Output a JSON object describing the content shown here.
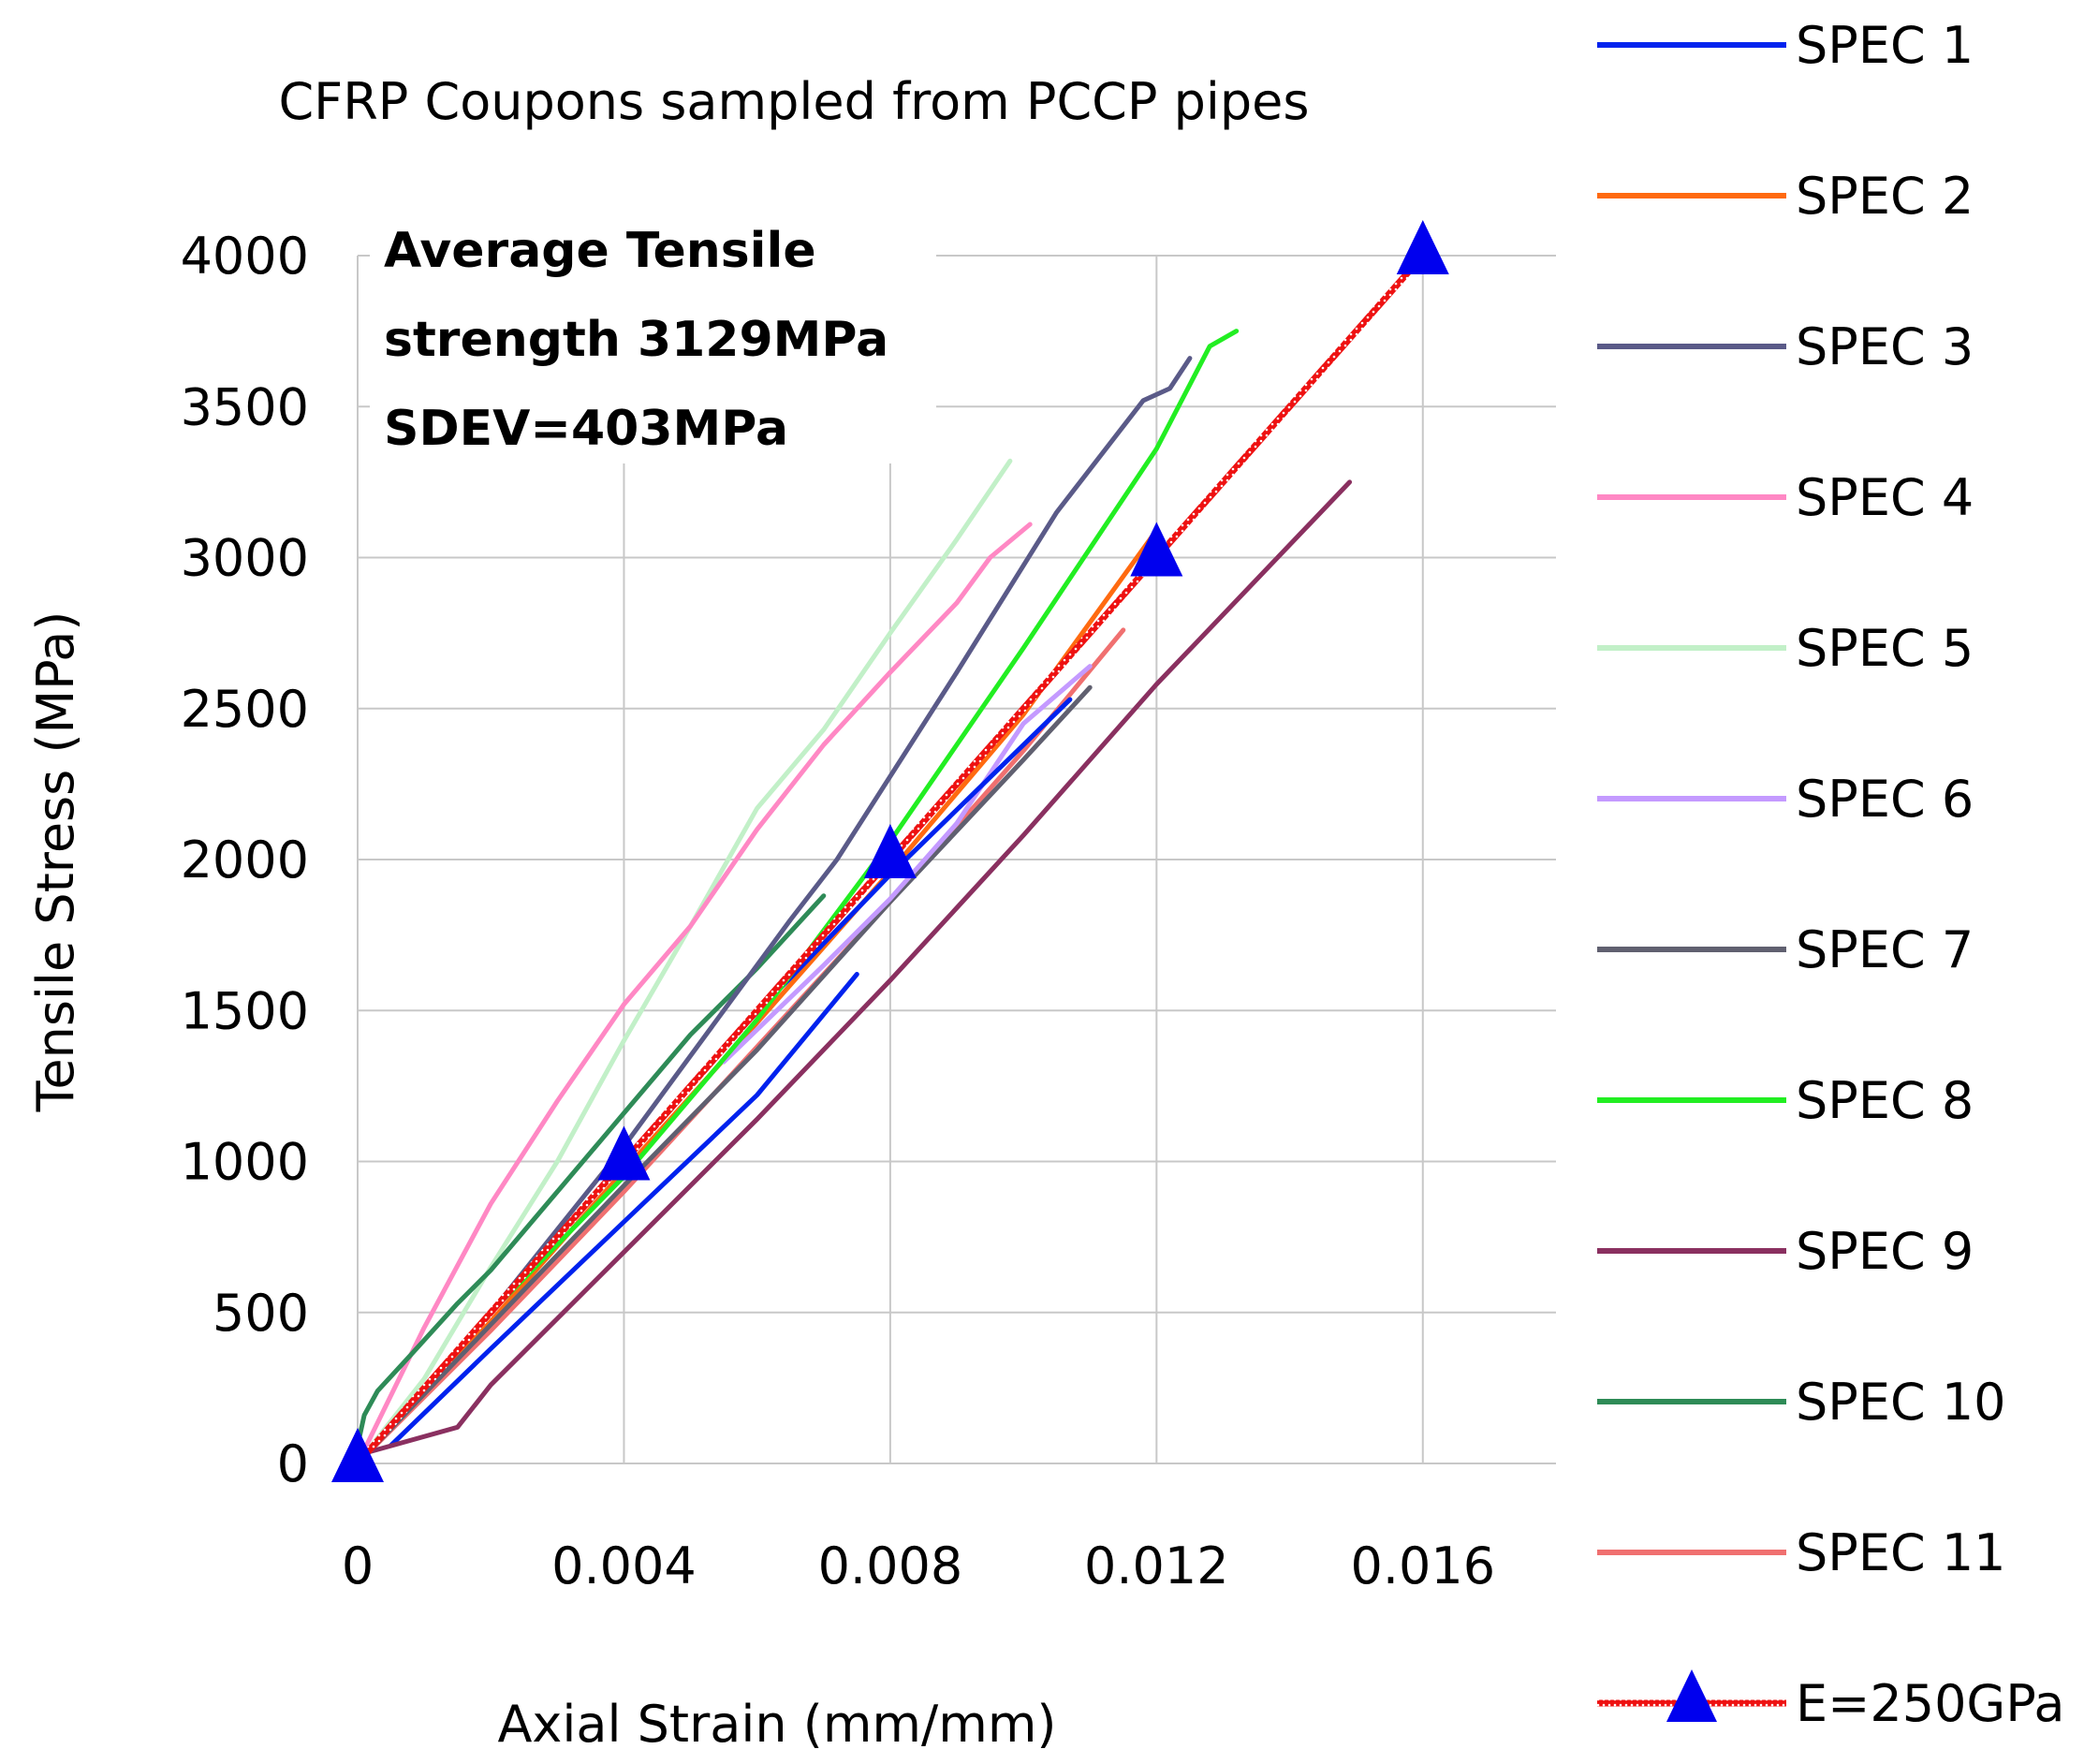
{
  "chart_data": {
    "type": "line",
    "title": "CFRP Coupons sampled from PCCP pipes",
    "xlabel": "Axial Strain (mm/mm)",
    "ylabel": "Tensile Stress (MPa)",
    "xlim": [
      0,
      0.018
    ],
    "ylim": [
      0,
      4000
    ],
    "x_ticks": [
      0,
      0.004,
      0.008,
      0.012,
      0.016
    ],
    "x_tick_labels": [
      "0",
      "0.004",
      "0.008",
      "0.012",
      "0.016"
    ],
    "y_ticks": [
      0,
      500,
      1000,
      1500,
      2000,
      2500,
      3000,
      3500,
      4000
    ],
    "y_tick_labels": [
      "0",
      "500",
      "1000",
      "1500",
      "2000",
      "2500",
      "3000",
      "3500",
      "4000"
    ],
    "grid": "vertical",
    "legend_position": "right",
    "annotation": {
      "lines": [
        "Average Tensile",
        "strength 3129MPa",
        "SDEV=403MPa"
      ]
    },
    "series": [
      {
        "name": "SPEC 1",
        "color": "#0022ee",
        "x": [
          0.0005,
          0.002,
          0.004,
          0.006,
          0.0075
        ],
        "y": [
          60,
          380,
          800,
          1220,
          1620
        ],
        "x2": [
          0.0055,
          0.008,
          0.0107
        ],
        "y2": [
          1380,
          1950,
          2530
        ]
      },
      {
        "name": "SPEC 2",
        "color": "#ff6a10",
        "x": [
          0,
          0.002,
          0.004,
          0.006,
          0.008,
          0.01,
          0.012
        ],
        "y": [
          0,
          470,
          970,
          1460,
          1960,
          2480,
          3090
        ]
      },
      {
        "name": "SPEC 3",
        "color": "#5a5a88",
        "x": [
          0,
          0.002,
          0.004,
          0.0065,
          0.0072,
          0.009,
          0.0105,
          0.0118,
          0.0122,
          0.0125
        ],
        "y": [
          0,
          500,
          1050,
          1800,
          2000,
          2620,
          3150,
          3520,
          3560,
          3660
        ]
      },
      {
        "name": "SPEC 4",
        "color": "#ff88c4",
        "x": [
          0,
          0.001,
          0.002,
          0.003,
          0.004,
          0.005,
          0.006,
          0.007,
          0.008,
          0.009,
          0.0095,
          0.0101
        ],
        "y": [
          0,
          450,
          860,
          1200,
          1520,
          1780,
          2100,
          2380,
          2620,
          2850,
          3000,
          3110
        ]
      },
      {
        "name": "SPEC 5",
        "color": "#c2f0c8",
        "x": [
          0,
          0.001,
          0.002,
          0.003,
          0.004,
          0.005,
          0.006,
          0.007,
          0.008,
          0.009,
          0.0098
        ],
        "y": [
          0,
          280,
          650,
          1000,
          1400,
          1780,
          2170,
          2430,
          2750,
          3060,
          3320
        ]
      },
      {
        "name": "SPEC 6",
        "color": "#c49aff",
        "x": [
          0.0055,
          0.007,
          0.008,
          0.009,
          0.01,
          0.011
        ],
        "y": [
          1330,
          1650,
          1870,
          2120,
          2450,
          2640
        ]
      },
      {
        "name": "SPEC 7",
        "color": "#606070",
        "x": [
          0,
          0.002,
          0.004,
          0.006,
          0.008,
          0.01,
          0.011
        ],
        "y": [
          0,
          460,
          920,
          1370,
          1860,
          2330,
          2570
        ]
      },
      {
        "name": "SPEC 8",
        "color": "#22ee22",
        "x": [
          0,
          0.002,
          0.004,
          0.006,
          0.008,
          0.01,
          0.012,
          0.0128,
          0.0132
        ],
        "y": [
          0,
          500,
          950,
          1470,
          2060,
          2700,
          3360,
          3700,
          3750
        ]
      },
      {
        "name": "SPEC 9",
        "color": "#8a3060",
        "x": [
          0.0002,
          0.0015,
          0.002,
          0.004,
          0.006,
          0.008,
          0.01,
          0.012,
          0.0149
        ],
        "y": [
          40,
          120,
          260,
          700,
          1140,
          1600,
          2080,
          2580,
          3250
        ]
      },
      {
        "name": "SPEC 10",
        "color": "#2e8b57",
        "x": [
          0,
          0.0001,
          0.0003,
          0.0008,
          0.0015,
          0.002,
          0.003,
          0.004,
          0.005,
          0.006,
          0.007
        ],
        "y": [
          60,
          160,
          240,
          360,
          530,
          640,
          900,
          1160,
          1420,
          1640,
          1880
        ]
      },
      {
        "name": "SPEC 11",
        "color": "#f07070",
        "x": [
          0,
          0.002,
          0.004,
          0.006,
          0.008,
          0.01,
          0.0115
        ],
        "y": [
          0,
          440,
          900,
          1380,
          1860,
          2360,
          2760
        ]
      },
      {
        "name": "E=250GPa",
        "color": "#ee1111",
        "marker": "triangle",
        "marker_color": "#0000ee",
        "x": [
          0,
          0.004,
          0.008,
          0.012,
          0.016
        ],
        "y": [
          0,
          1000,
          2000,
          3000,
          4000
        ]
      }
    ]
  }
}
